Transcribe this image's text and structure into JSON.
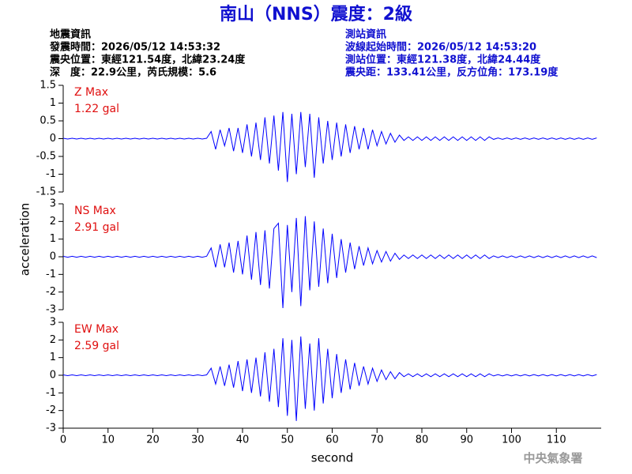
{
  "title": "南山（NNS）震度：2級",
  "quake_info": [
    "地震資訊",
    "發震時間：2026/05/12 14:53:32",
    "震央位置：東經121.54度，北緯23.24度",
    "深　度：22.9公里，芮氏規模：5.6"
  ],
  "station_info": [
    "測站資訊",
    "波線起始時間：2026/05/12 14:53:20",
    "測站位置：東經121.38度，北緯24.44度",
    "震央距：133.41公里，反方位角：173.19度"
  ],
  "footer": "中央氣象署",
  "chart_data": [
    {
      "type": "line",
      "label": "Z Max",
      "max_label": "1.22 gal",
      "color": "#0000ff",
      "label_color": "#e01010",
      "xlim": [
        0,
        120
      ],
      "ylim": [
        -1.5,
        1.5
      ],
      "yticks": [
        -1.5,
        -1,
        -0.5,
        0,
        0.5,
        1,
        1.5
      ],
      "x": [
        0,
        1,
        2,
        3,
        4,
        5,
        6,
        7,
        8,
        9,
        10,
        11,
        12,
        13,
        14,
        15,
        16,
        17,
        18,
        19,
        20,
        21,
        22,
        23,
        24,
        25,
        26,
        27,
        28,
        29,
        30,
        31,
        32,
        33,
        34,
        35,
        36,
        37,
        38,
        39,
        40,
        41,
        42,
        43,
        44,
        45,
        46,
        47,
        48,
        49,
        50,
        51,
        52,
        53,
        54,
        55,
        56,
        57,
        58,
        59,
        60,
        61,
        62,
        63,
        64,
        65,
        66,
        67,
        68,
        69,
        70,
        71,
        72,
        73,
        74,
        75,
        76,
        77,
        78,
        79,
        80,
        81,
        82,
        83,
        84,
        85,
        86,
        87,
        88,
        89,
        90,
        91,
        92,
        93,
        94,
        95,
        96,
        97,
        98,
        99,
        100,
        101,
        102,
        103,
        104,
        105,
        106,
        107,
        108,
        109,
        110,
        111,
        112,
        113,
        114,
        115,
        116,
        117,
        118,
        119
      ],
      "values": [
        0.01,
        -0.01,
        0.01,
        -0.01,
        0.01,
        -0.01,
        0.01,
        -0.01,
        0.01,
        -0.01,
        0.01,
        -0.01,
        0.01,
        -0.01,
        0.01,
        -0.01,
        0.01,
        -0.01,
        0.01,
        -0.01,
        0.01,
        -0.01,
        0.01,
        -0.01,
        0.01,
        -0.01,
        0.01,
        -0.01,
        0.01,
        -0.01,
        0.01,
        -0.01,
        0.01,
        0.2,
        -0.3,
        0.25,
        -0.2,
        0.3,
        -0.35,
        0.3,
        -0.4,
        0.4,
        -0.5,
        0.45,
        -0.6,
        0.6,
        -0.7,
        0.65,
        -0.9,
        0.75,
        -1.22,
        0.7,
        -1.0,
        0.75,
        -0.8,
        0.7,
        -1.1,
        0.6,
        -0.7,
        0.5,
        -0.6,
        0.45,
        -0.5,
        0.4,
        -0.4,
        0.35,
        -0.3,
        0.3,
        -0.3,
        0.25,
        -0.2,
        0.2,
        -0.15,
        0.15,
        -0.1,
        0.1,
        -0.05,
        0.05,
        -0.05,
        0.05,
        -0.05,
        0.05,
        -0.05,
        0.05,
        -0.05,
        0.05,
        -0.05,
        0.05,
        -0.05,
        0.05,
        -0.05,
        0.05,
        -0.05,
        0.05,
        -0.05,
        0.05,
        -0.02,
        0.02,
        -0.02,
        0.02,
        -0.02,
        0.02,
        -0.02,
        0.02,
        -0.02,
        0.02,
        -0.02,
        0.02,
        -0.02,
        0.02,
        -0.02,
        0.02,
        -0.02,
        0.02,
        -0.02,
        0.02,
        -0.02,
        0.02,
        -0.02,
        0.02
      ]
    },
    {
      "type": "line",
      "label": "NS Max",
      "max_label": "2.91 gal",
      "color": "#0000ff",
      "label_color": "#e01010",
      "ylabel": "acceleration",
      "xlim": [
        0,
        120
      ],
      "ylim": [
        -3,
        3
      ],
      "yticks": [
        -3,
        -2,
        -1,
        0,
        1,
        2,
        3
      ],
      "x": [
        0,
        1,
        2,
        3,
        4,
        5,
        6,
        7,
        8,
        9,
        10,
        11,
        12,
        13,
        14,
        15,
        16,
        17,
        18,
        19,
        20,
        21,
        22,
        23,
        24,
        25,
        26,
        27,
        28,
        29,
        30,
        31,
        32,
        33,
        34,
        35,
        36,
        37,
        38,
        39,
        40,
        41,
        42,
        43,
        44,
        45,
        46,
        47,
        48,
        49,
        50,
        51,
        52,
        53,
        54,
        55,
        56,
        57,
        58,
        59,
        60,
        61,
        62,
        63,
        64,
        65,
        66,
        67,
        68,
        69,
        70,
        71,
        72,
        73,
        74,
        75,
        76,
        77,
        78,
        79,
        80,
        81,
        82,
        83,
        84,
        85,
        86,
        87,
        88,
        89,
        90,
        91,
        92,
        93,
        94,
        95,
        96,
        97,
        98,
        99,
        100,
        101,
        102,
        103,
        104,
        105,
        106,
        107,
        108,
        109,
        110,
        111,
        112,
        113,
        114,
        115,
        116,
        117,
        118,
        119
      ],
      "values": [
        0.03,
        -0.03,
        0.03,
        -0.03,
        0.03,
        -0.03,
        0.03,
        -0.03,
        0.03,
        -0.03,
        0.03,
        -0.03,
        0.03,
        -0.03,
        0.03,
        -0.03,
        0.03,
        -0.03,
        0.03,
        -0.03,
        0.03,
        -0.03,
        0.03,
        -0.03,
        0.03,
        -0.03,
        0.03,
        -0.03,
        0.03,
        -0.03,
        0.03,
        -0.03,
        0.03,
        0.5,
        -0.6,
        0.7,
        -0.6,
        0.8,
        -0.9,
        0.9,
        -1.0,
        1.2,
        -1.3,
        1.4,
        -1.6,
        1.5,
        -1.8,
        1.6,
        1.9,
        -2.91,
        1.8,
        -2.0,
        2.2,
        -2.8,
        2.3,
        -1.9,
        2.0,
        -1.7,
        1.6,
        -1.5,
        1.3,
        -1.2,
        1.0,
        -0.9,
        0.8,
        -0.7,
        0.6,
        -0.5,
        0.5,
        -0.4,
        0.35,
        -0.3,
        0.3,
        -0.25,
        0.2,
        -0.15,
        0.1,
        -0.1,
        0.1,
        -0.1,
        0.1,
        -0.1,
        0.1,
        -0.1,
        0.1,
        -0.1,
        0.1,
        -0.1,
        0.1,
        -0.1,
        0.1,
        -0.1,
        0.1,
        -0.1,
        0.1,
        -0.1,
        0.05,
        -0.05,
        0.05,
        -0.05,
        0.05,
        -0.05,
        0.05,
        -0.05,
        0.05,
        -0.05,
        0.05,
        -0.05,
        0.05,
        -0.05,
        0.05,
        -0.05,
        0.05,
        -0.05,
        0.05,
        -0.05,
        0.05,
        -0.05,
        0.05,
        -0.05
      ]
    },
    {
      "type": "line",
      "label": "EW Max",
      "max_label": "2.59 gal",
      "color": "#0000ff",
      "label_color": "#e01010",
      "xlabel": "second",
      "xlim": [
        0,
        120
      ],
      "xticks": [
        0,
        10,
        20,
        30,
        40,
        50,
        60,
        70,
        80,
        90,
        100,
        110
      ],
      "ylim": [
        -3,
        3
      ],
      "yticks": [
        -3,
        -2,
        -1,
        0,
        1,
        2,
        3
      ],
      "x": [
        0,
        1,
        2,
        3,
        4,
        5,
        6,
        7,
        8,
        9,
        10,
        11,
        12,
        13,
        14,
        15,
        16,
        17,
        18,
        19,
        20,
        21,
        22,
        23,
        24,
        25,
        26,
        27,
        28,
        29,
        30,
        31,
        32,
        33,
        34,
        35,
        36,
        37,
        38,
        39,
        40,
        41,
        42,
        43,
        44,
        45,
        46,
        47,
        48,
        49,
        50,
        51,
        52,
        53,
        54,
        55,
        56,
        57,
        58,
        59,
        60,
        61,
        62,
        63,
        64,
        65,
        66,
        67,
        68,
        69,
        70,
        71,
        72,
        73,
        74,
        75,
        76,
        77,
        78,
        79,
        80,
        81,
        82,
        83,
        84,
        85,
        86,
        87,
        88,
        89,
        90,
        91,
        92,
        93,
        94,
        95,
        96,
        97,
        98,
        99,
        100,
        101,
        102,
        103,
        104,
        105,
        106,
        107,
        108,
        109,
        110,
        111,
        112,
        113,
        114,
        115,
        116,
        117,
        118,
        119
      ],
      "values": [
        0.02,
        -0.02,
        0.02,
        -0.02,
        0.02,
        -0.02,
        0.02,
        -0.02,
        0.02,
        -0.02,
        0.02,
        -0.02,
        0.02,
        -0.02,
        0.02,
        -0.02,
        0.02,
        -0.02,
        0.02,
        -0.02,
        0.02,
        -0.02,
        0.02,
        -0.02,
        0.02,
        -0.02,
        0.02,
        -0.02,
        0.02,
        -0.02,
        0.02,
        -0.02,
        0.02,
        0.4,
        -0.5,
        0.5,
        -0.6,
        0.6,
        -0.7,
        0.8,
        -0.9,
        0.9,
        -1.0,
        1.0,
        -1.2,
        1.3,
        -1.5,
        1.5,
        -1.8,
        2.1,
        -2.3,
        2.0,
        -2.59,
        2.2,
        -1.9,
        1.8,
        -2.0,
        2.1,
        -1.6,
        1.5,
        -1.3,
        1.2,
        -1.0,
        0.9,
        -0.8,
        0.7,
        -0.6,
        0.5,
        -0.5,
        0.4,
        -0.35,
        0.3,
        -0.25,
        0.2,
        -0.2,
        0.15,
        -0.08,
        0.08,
        -0.08,
        0.08,
        -0.08,
        0.08,
        -0.08,
        0.08,
        -0.08,
        0.08,
        -0.08,
        0.08,
        -0.08,
        0.08,
        -0.08,
        0.08,
        -0.08,
        0.08,
        -0.08,
        0.08,
        -0.04,
        0.04,
        -0.04,
        0.04,
        -0.04,
        0.04,
        -0.04,
        0.04,
        -0.04,
        0.04,
        -0.04,
        0.04,
        -0.04,
        0.04,
        -0.04,
        0.04,
        -0.04,
        0.04,
        -0.04,
        0.04,
        -0.04,
        0.04,
        -0.04,
        0.04
      ]
    }
  ]
}
